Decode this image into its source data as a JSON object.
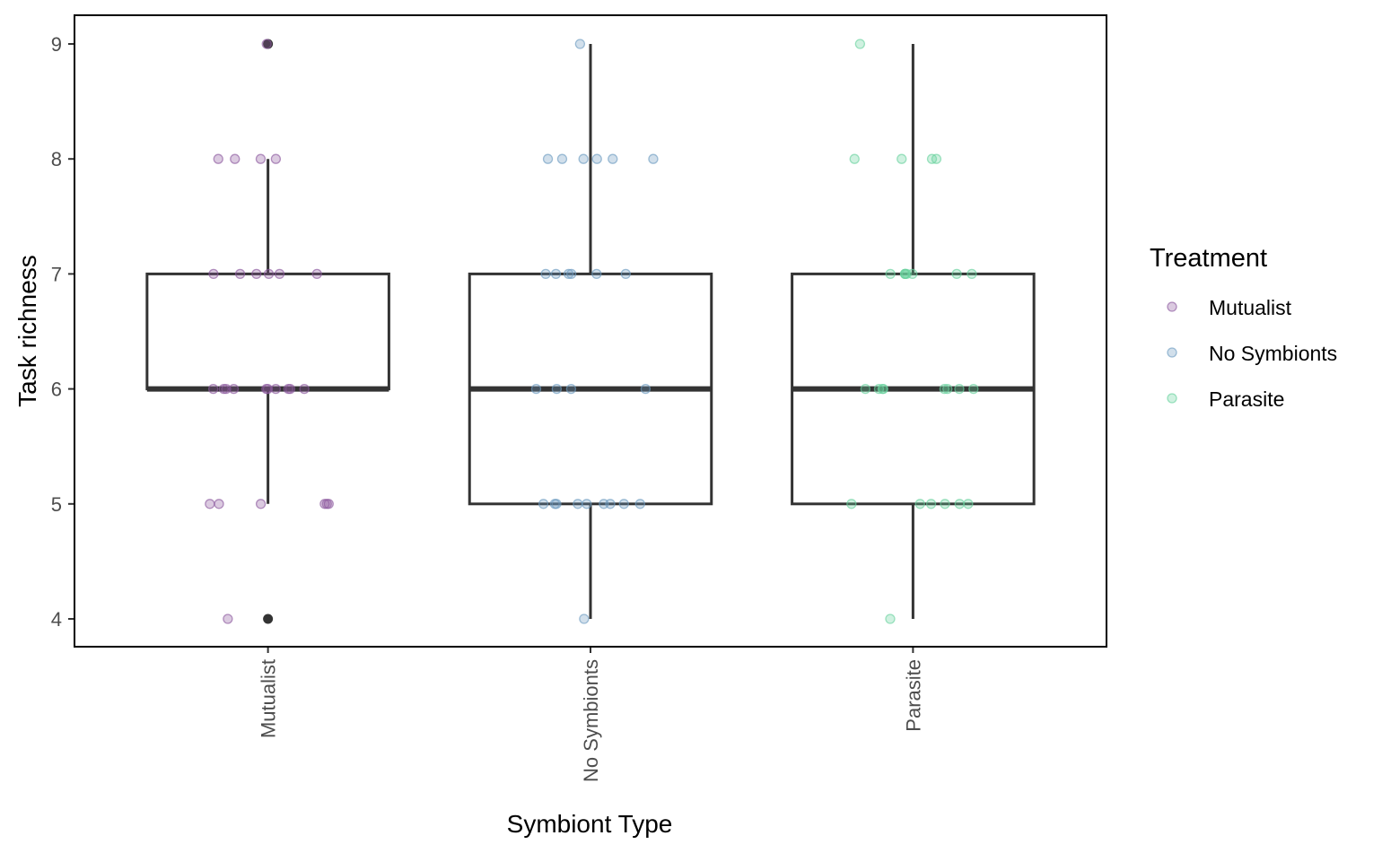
{
  "chart_data": {
    "type": "boxplot",
    "xlabel": "Symbiont Type",
    "ylabel": "Task richness",
    "ylim": [
      3.75,
      9.25
    ],
    "yticks": [
      4,
      5,
      6,
      7,
      8,
      9
    ],
    "grid": false,
    "categories": [
      "Mutualist",
      "No Symbionts",
      "Parasite"
    ],
    "boxes": [
      {
        "category": "Mutualist",
        "q1": 6,
        "median": 6,
        "q3": 7,
        "whisker_low": 5,
        "whisker_high": 8,
        "outliers": [
          4,
          9
        ]
      },
      {
        "category": "No Symbionts",
        "q1": 5,
        "median": 6,
        "q3": 7,
        "whisker_low": 4,
        "whisker_high": 9,
        "outliers": []
      },
      {
        "category": "Parasite",
        "q1": 5,
        "median": 6,
        "q3": 7,
        "whisker_low": 4,
        "whisker_high": 9,
        "outliers": []
      }
    ],
    "points": [
      {
        "category": "Mutualist",
        "values": [
          9,
          8,
          8,
          8,
          8,
          7,
          7,
          7,
          7,
          7,
          7,
          6,
          6,
          6,
          6,
          6,
          6,
          6,
          6,
          6,
          6,
          5,
          5,
          5,
          5,
          5,
          5,
          4
        ]
      },
      {
        "category": "No Symbionts",
        "values": [
          9,
          8,
          8,
          8,
          8,
          8,
          8,
          7,
          7,
          7,
          7,
          7,
          7,
          6,
          6,
          6,
          6,
          5,
          5,
          5,
          5,
          5,
          5,
          5,
          5,
          5,
          4
        ]
      },
      {
        "category": "Parasite",
        "values": [
          9,
          8,
          8,
          8,
          8,
          7,
          7,
          7,
          7,
          7,
          7,
          7,
          7,
          6,
          6,
          6,
          6,
          6,
          6,
          6,
          6,
          5,
          5,
          5,
          5,
          5,
          5,
          4
        ]
      }
    ],
    "legend": {
      "title": "Treatment",
      "placement": "right",
      "entries": [
        {
          "label": "Mutualist",
          "color": "#8e5aa0"
        },
        {
          "label": "No Symbionts",
          "color": "#6f9cc1"
        },
        {
          "label": "Parasite",
          "color": "#6bd3a0"
        }
      ]
    },
    "colors": {
      "box": "#333333",
      "outlier": "#333333",
      "panel_border": "#000000"
    }
  }
}
